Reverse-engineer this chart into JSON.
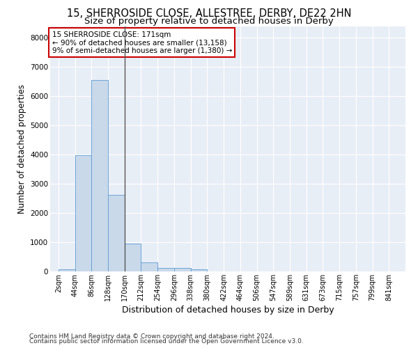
{
  "title_line1": "15, SHERROSIDE CLOSE, ALLESTREE, DERBY, DE22 2HN",
  "title_line2": "Size of property relative to detached houses in Derby",
  "xlabel": "Distribution of detached houses by size in Derby",
  "ylabel": "Number of detached properties",
  "bar_color": "#c9d9ea",
  "bar_edge_color": "#5b9bd5",
  "background_color": "#e8eef6",
  "grid_color": "white",
  "annotation_line1": "15 SHERROSIDE CLOSE: 171sqm",
  "annotation_line2": "← 90% of detached houses are smaller (13,158)",
  "annotation_line3": "9% of semi-detached houses are larger (1,380) →",
  "annotation_box_color": "white",
  "annotation_box_edge_color": "#cc0000",
  "vline_color": "#555555",
  "vline_x_data": 4,
  "tick_labels": [
    "2sqm",
    "44sqm",
    "86sqm",
    "128sqm",
    "170sqm",
    "212sqm",
    "254sqm",
    "296sqm",
    "338sqm",
    "380sqm",
    "422sqm",
    "464sqm",
    "506sqm",
    "547sqm",
    "589sqm",
    "631sqm",
    "673sqm",
    "715sqm",
    "757sqm",
    "799sqm",
    "841sqm"
  ],
  "bar_heights": [
    80,
    3980,
    6550,
    2620,
    960,
    310,
    130,
    110,
    80,
    0,
    0,
    0,
    0,
    0,
    0,
    0,
    0,
    0,
    0,
    0,
    0
  ],
  "ylim": [
    0,
    8400
  ],
  "yticks": [
    0,
    1000,
    2000,
    3000,
    4000,
    5000,
    6000,
    7000,
    8000
  ],
  "footnote_line1": "Contains HM Land Registry data © Crown copyright and database right 2024.",
  "footnote_line2": "Contains public sector information licensed under the Open Government Licence v3.0.",
  "title_fontsize": 10.5,
  "subtitle_fontsize": 9.5,
  "xlabel_fontsize": 9,
  "ylabel_fontsize": 8.5,
  "tick_fontsize": 7,
  "annotation_fontsize": 7.5,
  "footnote_fontsize": 6.5
}
